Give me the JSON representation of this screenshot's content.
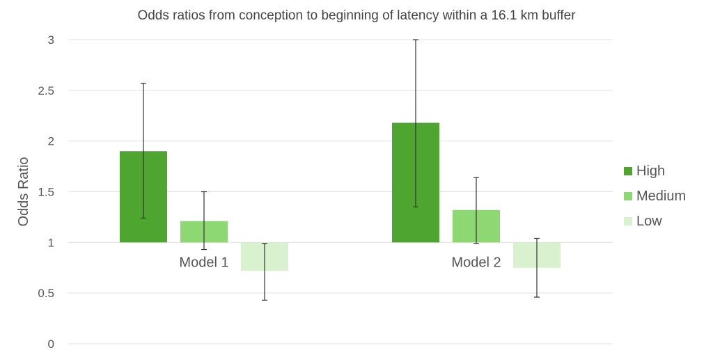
{
  "chart_data": {
    "type": "bar",
    "title": "Odds ratios from conception to beginning of latency within a 16.1 km buffer",
    "xlabel": "",
    "ylabel": "Odds Ratio",
    "ylim": [
      0,
      3
    ],
    "yticks": [
      "0",
      "0.5",
      "1",
      "1.5",
      "2",
      "2.5",
      "3"
    ],
    "grid": true,
    "baseline": 1,
    "legend_position": "right",
    "categories": [
      "Model 1",
      "Model 2"
    ],
    "series": [
      {
        "name": "High",
        "color": "#4ea52f",
        "values": [
          1.9,
          2.18
        ],
        "ci_lower": [
          1.24,
          1.35
        ],
        "ci_upper": [
          2.57,
          3.0
        ]
      },
      {
        "name": "Medium",
        "color": "#8ed873",
        "values": [
          1.21,
          1.32
        ],
        "ci_lower": [
          0.93,
          0.99
        ],
        "ci_upper": [
          1.5,
          1.64
        ]
      },
      {
        "name": "Low",
        "color": "#d9f1cf",
        "values": [
          0.72,
          0.75
        ],
        "ci_lower": [
          0.43,
          0.46
        ],
        "ci_upper": [
          0.99,
          1.04
        ]
      }
    ]
  }
}
